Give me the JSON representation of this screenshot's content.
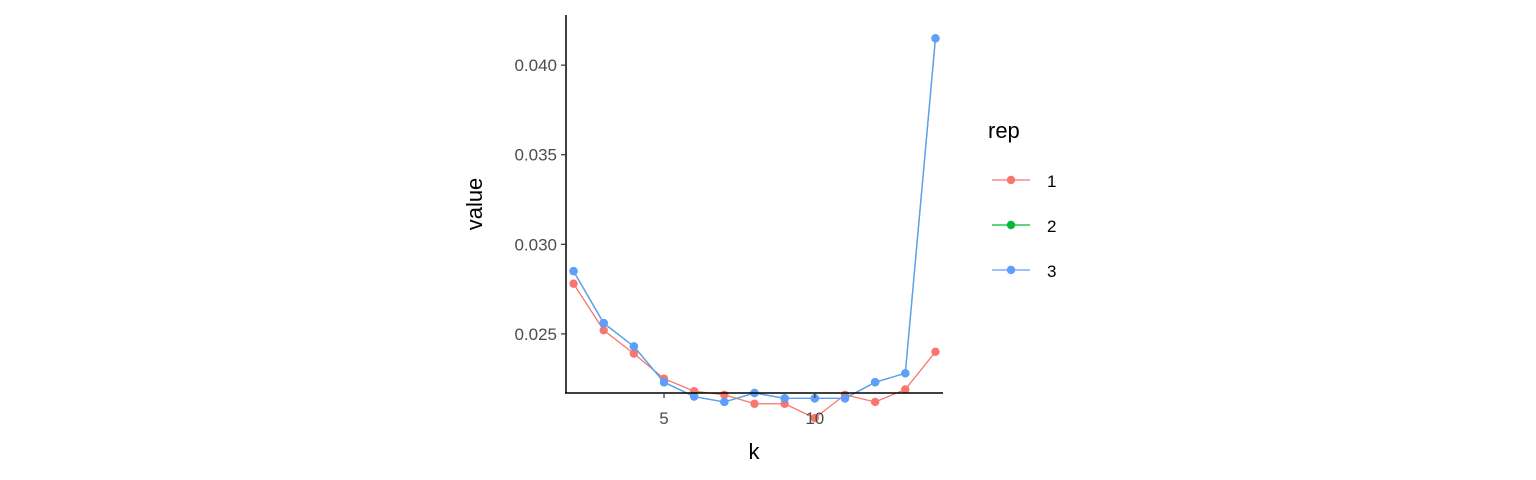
{
  "chart_data": {
    "type": "line",
    "xlabel": "k",
    "ylabel": "value",
    "xlim": [
      1.75,
      14.25
    ],
    "ylim": [
      0.0217,
      0.0428
    ],
    "x_ticks": [
      5,
      10
    ],
    "x_tick_labels": [
      "5",
      "10"
    ],
    "y_ticks": [
      0.025,
      0.03,
      0.035,
      0.04
    ],
    "y_tick_labels": [
      "0.025",
      "0.030",
      "0.035",
      "0.040"
    ],
    "grid": false,
    "markers": true,
    "legend": {
      "title": "rep",
      "position": "right",
      "entries": [
        "1",
        "2",
        "3"
      ]
    },
    "x": [
      2,
      3,
      4,
      5,
      6,
      7,
      8,
      9,
      10,
      11,
      12,
      13,
      14
    ],
    "series": [
      {
        "name": "1",
        "color": "#F8766D",
        "values": [
          0.0278,
          0.0252,
          0.0239,
          0.0225,
          0.0218,
          0.0216,
          0.0211,
          0.0211,
          0.0203,
          0.0216,
          0.0212,
          0.0219,
          0.024
        ]
      },
      {
        "name": "2",
        "color": "#00BA38",
        "values": [
          0.0285,
          0.0256,
          0.0243,
          0.0223,
          0.0215,
          0.0212,
          0.0217,
          0.0214,
          0.0214,
          0.0214,
          0.0223,
          0.0228,
          0.0415
        ]
      },
      {
        "name": "3",
        "color": "#619CFF",
        "values": [
          0.0285,
          0.0256,
          0.0243,
          0.0223,
          0.0215,
          0.0212,
          0.0217,
          0.0214,
          0.0214,
          0.0214,
          0.0223,
          0.0228,
          0.0415
        ]
      }
    ]
  }
}
